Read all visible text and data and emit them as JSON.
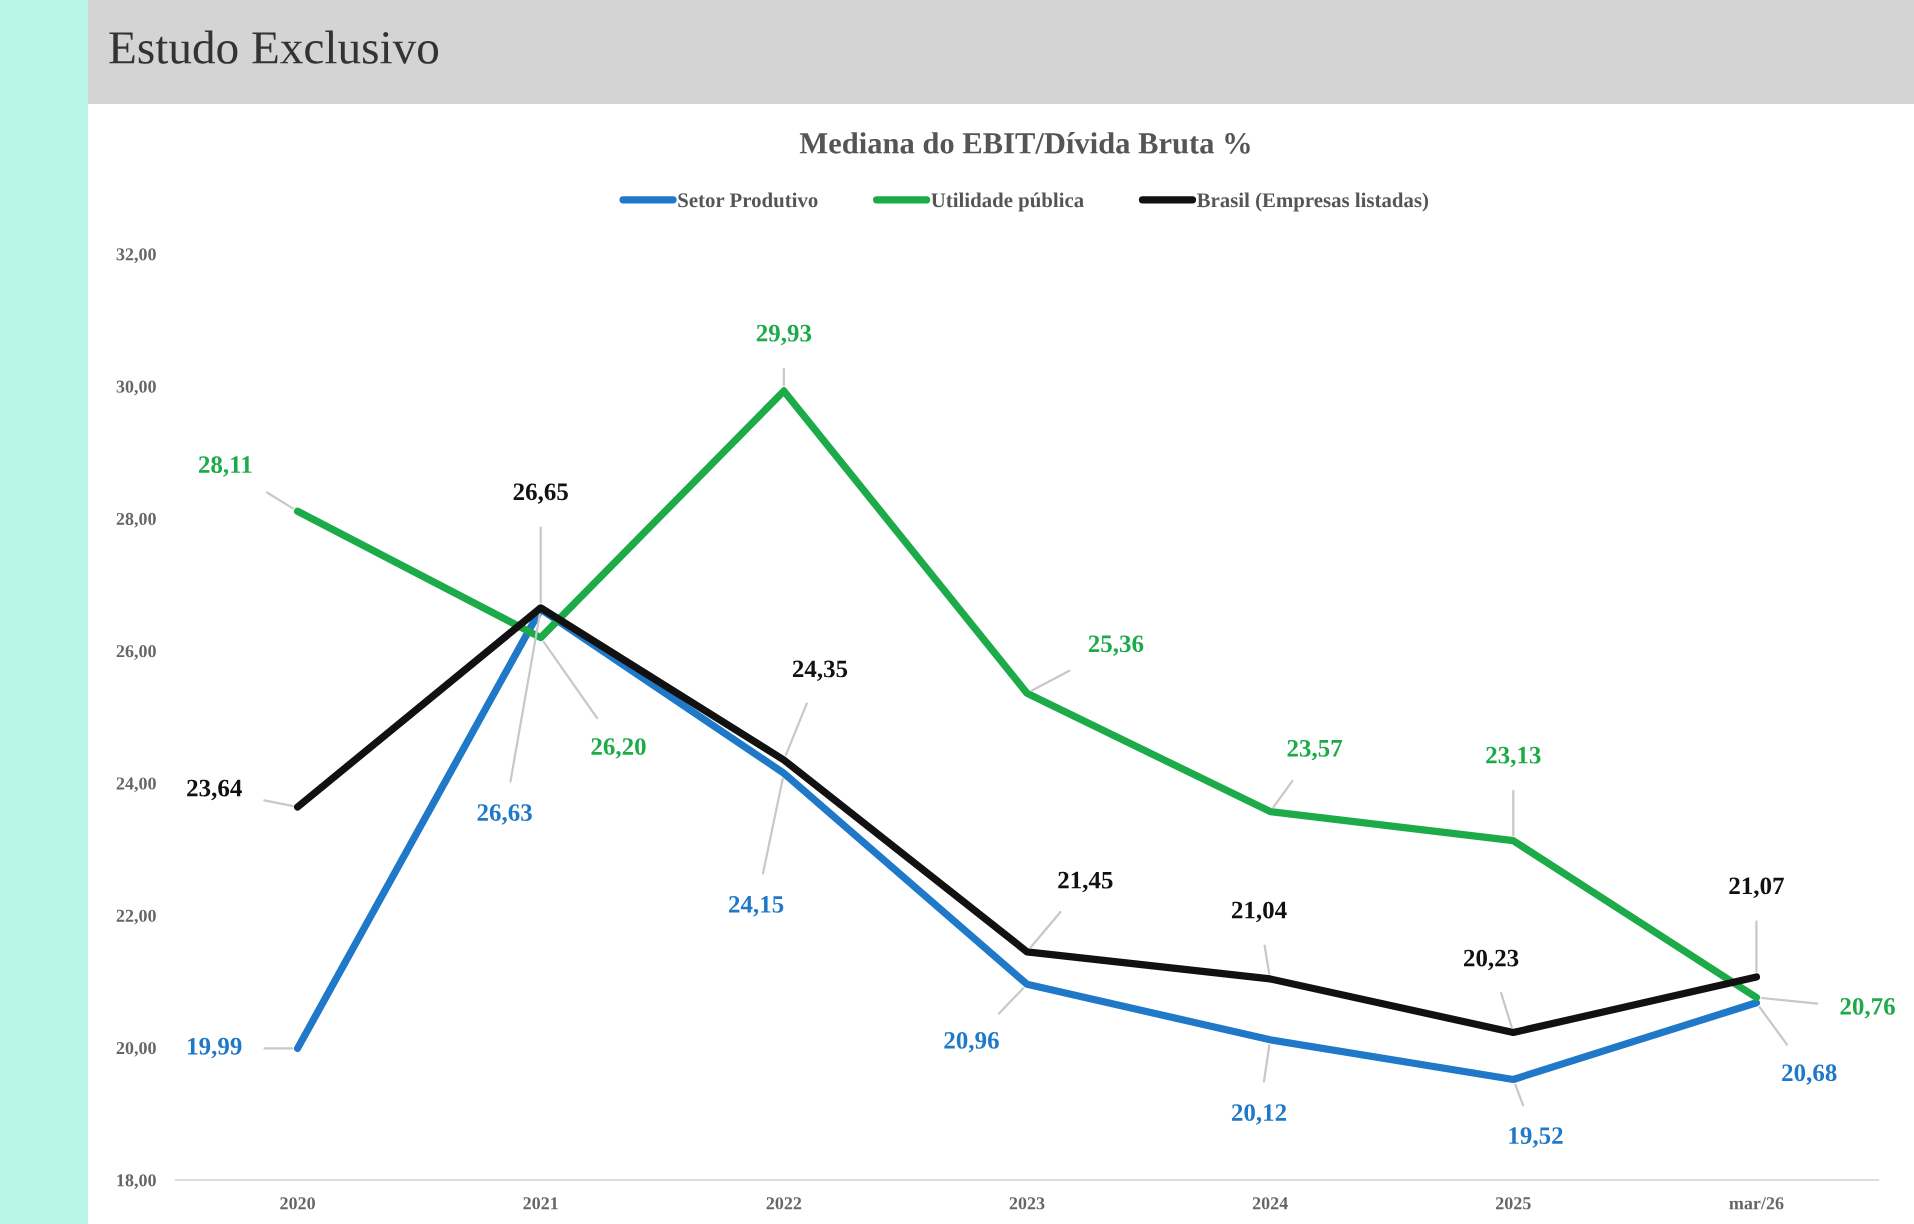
{
  "chart_data": {
    "type": "line",
    "title": "Mediana do EBIT/Dívida Bruta %",
    "annotations": [
      "Estudo Exclusivo"
    ],
    "categories": [
      "2020",
      "2021",
      "2022",
      "2023",
      "2024",
      "2025",
      "mar/26"
    ],
    "series": [
      {
        "name": "Setor Produtivo",
        "color": "#1f78c8",
        "values": [
          19.99,
          26.63,
          24.15,
          20.96,
          20.12,
          19.52,
          20.68
        ],
        "value_labels": [
          "19,99",
          "26,63",
          "24,15",
          "20,96",
          "20,12",
          "19,52",
          "20,68"
        ]
      },
      {
        "name": "Utilidade pública",
        "color": "#1cab48",
        "values": [
          28.11,
          26.2,
          29.93,
          25.36,
          23.57,
          23.13,
          20.76
        ],
        "value_labels": [
          "28,11",
          "26,20",
          "29,93",
          "25,36",
          "23,57",
          "23,13",
          "20,76"
        ]
      },
      {
        "name": "Brasil (Empresas listadas)",
        "color": "#111111",
        "values": [
          23.64,
          26.65,
          24.35,
          21.45,
          21.04,
          20.23,
          21.07
        ],
        "value_labels": [
          "23,64",
          "26,65",
          "24,35",
          "21,45",
          "21,04",
          "20,23",
          "21,07"
        ]
      }
    ],
    "ylim": [
      18,
      32
    ],
    "yticks": [
      {
        "value": 18,
        "label": "18,00"
      },
      {
        "value": 20,
        "label": "20,00"
      },
      {
        "value": 22,
        "label": "22,00"
      },
      {
        "value": 24,
        "label": "24,00"
      },
      {
        "value": 26,
        "label": "26,00"
      },
      {
        "value": 28,
        "label": "28,00"
      },
      {
        "value": 30,
        "label": "30,00"
      },
      {
        "value": 32,
        "label": "32,00"
      }
    ],
    "grid": false,
    "legend": "top",
    "line_style": "solid"
  }
}
